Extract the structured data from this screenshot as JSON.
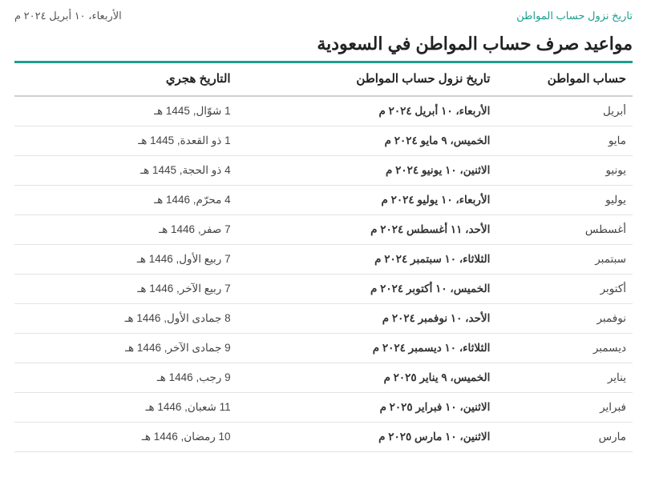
{
  "header": {
    "link_text": "تاريخ نزول حساب المواطن",
    "current_date": "الأربعاء، ١٠ أبريل ٢٠٢٤ م"
  },
  "title": "مواعيد صرف حساب المواطن في السعودية",
  "colors": {
    "accent": "#1d9e8e",
    "text": "#333333",
    "border": "#e3e3e3"
  },
  "table": {
    "columns": [
      "حساب المواطن",
      "تاريخ نزول حساب المواطن",
      "التاريخ هجري"
    ],
    "rows": [
      [
        "أبريل",
        "الأربعاء، ١٠ أبريل ٢٠٢٤ م",
        "1 شوّال, 1445 هـ"
      ],
      [
        "مايو",
        "الخميس، ٩ مايو ٢٠٢٤ م",
        "1 ذو القعدة, 1445 هـ"
      ],
      [
        "يونيو",
        "الاثنين، ١٠ يونيو ٢٠٢٤ م",
        "4 ذو الحجة, 1445 هـ"
      ],
      [
        "يوليو",
        "الأربعاء، ١٠ يوليو ٢٠٢٤ م",
        "4 محرّم, 1446 هـ"
      ],
      [
        "أغسطس",
        "الأحد، ١١ أغسطس ٢٠٢٤ م",
        "7 صفر, 1446 هـ"
      ],
      [
        "سبتمبر",
        "الثلاثاء، ١٠ سبتمبر ٢٠٢٤ م",
        "7 ربيع الأول, 1446 هـ"
      ],
      [
        "أكتوبر",
        "الخميس، ١٠ أكتوبر ٢٠٢٤ م",
        "7 ربيع الآخر, 1446 هـ"
      ],
      [
        "نوفمبر",
        "الأحد، ١٠ نوفمبر ٢٠٢٤ م",
        "8 جمادى الأول, 1446 هـ"
      ],
      [
        "ديسمبر",
        "الثلاثاء، ١٠ ديسمبر ٢٠٢٤ م",
        "9 جمادى الآخر, 1446 هـ"
      ],
      [
        "يناير",
        "الخميس، ٩ يناير ٢٠٢٥ م",
        "9 رجب, 1446 هـ"
      ],
      [
        "فبراير",
        "الاثنين، ١٠ فبراير ٢٠٢٥ م",
        "11 شعبان, 1446 هـ"
      ],
      [
        "مارس",
        "الاثنين، ١٠ مارس ٢٠٢٥ م",
        "10 رمضان, 1446 هـ"
      ]
    ]
  }
}
